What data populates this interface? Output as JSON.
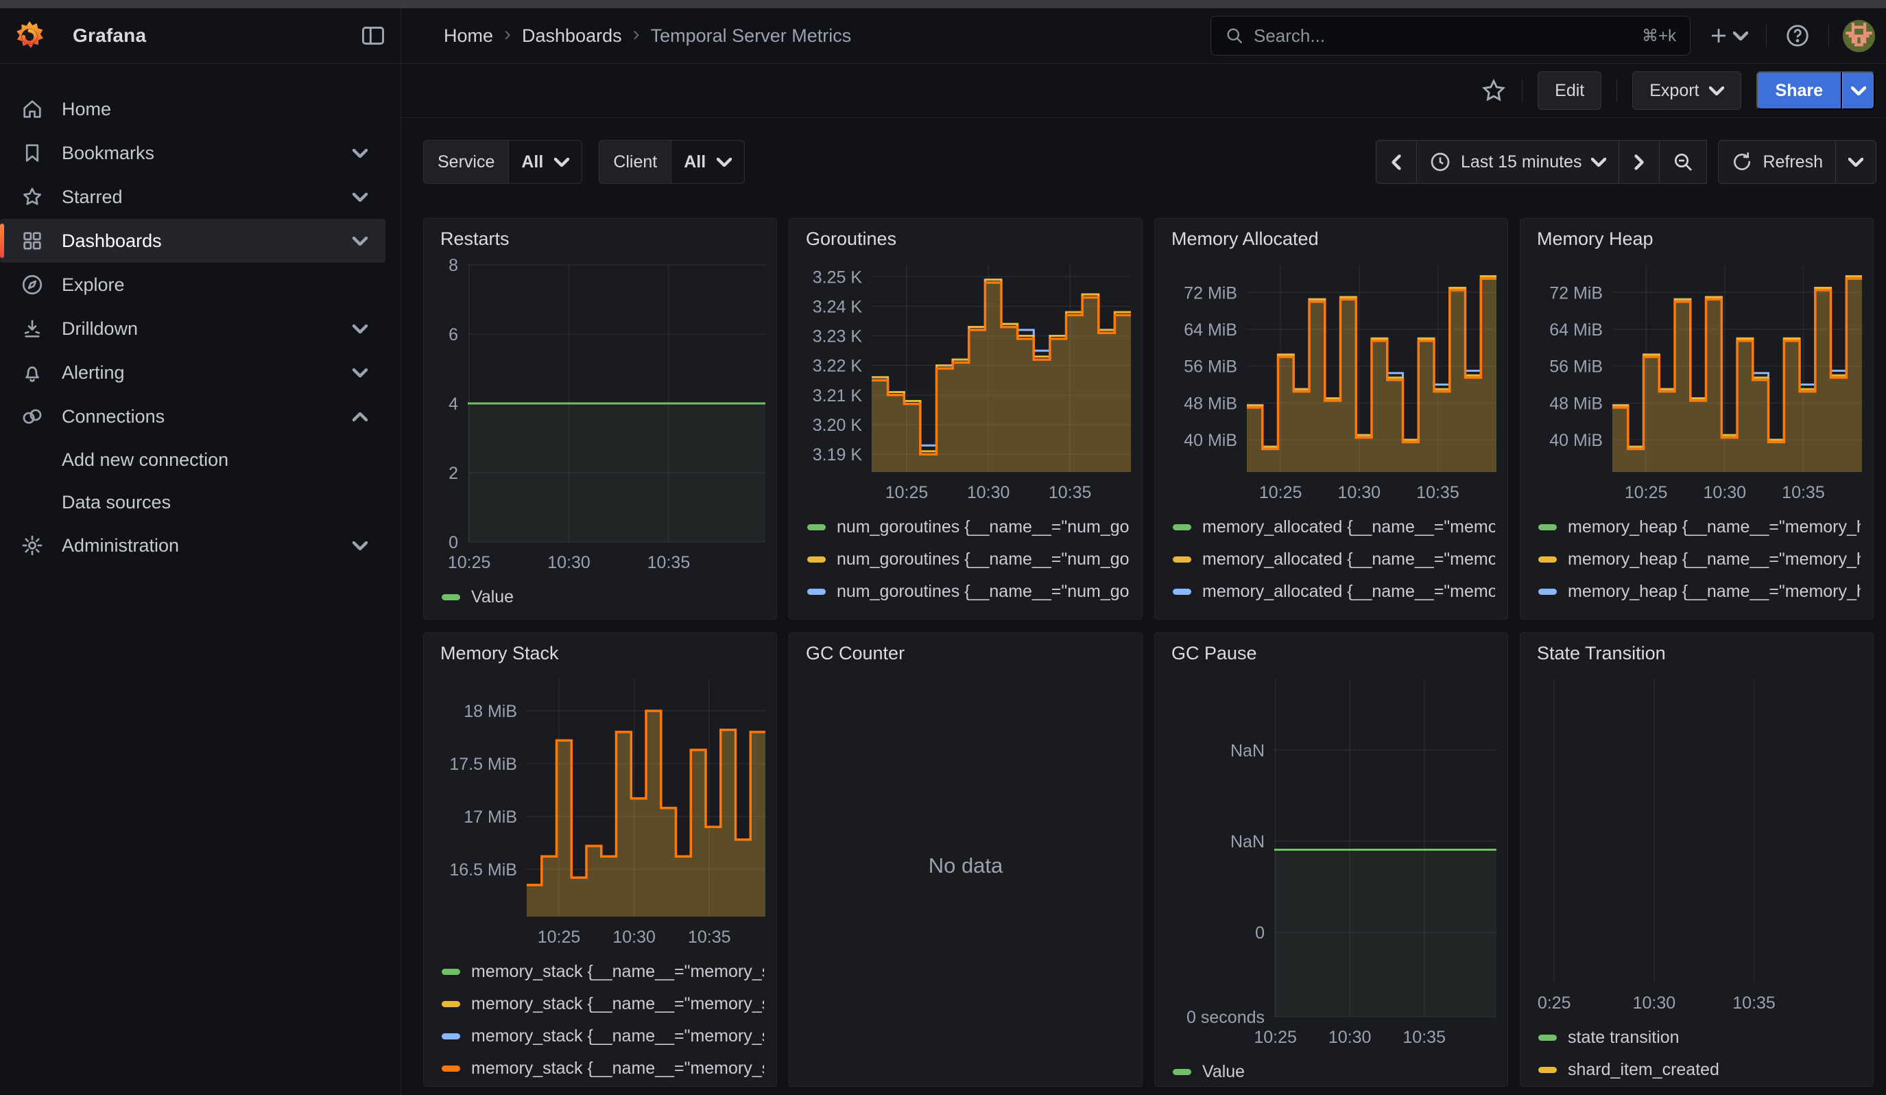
{
  "colors": {
    "page_bg": "#111217",
    "panel_bg": "#1A1B21",
    "panel_border": "#25262C",
    "accent_blue": "#3D71D9",
    "brand_orange": "#FF8833",
    "green": "#73BF69",
    "yellow": "#EAB839",
    "blue": "#8AB8FF",
    "orange": "#FF780A",
    "axis_text": "#9CA2AC",
    "area_fill": "rgba(234,184,57,0.32)",
    "green_fill": "rgba(115,191,105,0.07)"
  },
  "header": {
    "brand": "Grafana",
    "breadcrumb": [
      "Home",
      "Dashboards",
      "Temporal Server Metrics"
    ],
    "search_placeholder": "Search...",
    "search_shortcut": "⌘+k"
  },
  "toolbar": {
    "edit": "Edit",
    "export": "Export",
    "share": "Share"
  },
  "filters": [
    {
      "label": "Service",
      "value": "All"
    },
    {
      "label": "Client",
      "value": "All"
    }
  ],
  "timepicker": {
    "range": "Last 15 minutes",
    "refresh_label": "Refresh"
  },
  "sidebar": {
    "items": [
      {
        "label": "Home",
        "icon": "home"
      },
      {
        "label": "Bookmarks",
        "icon": "bookmark",
        "chevron": "down"
      },
      {
        "label": "Starred",
        "icon": "star",
        "chevron": "down"
      },
      {
        "label": "Dashboards",
        "icon": "grid",
        "chevron": "down",
        "active": true
      },
      {
        "label": "Explore",
        "icon": "compass"
      },
      {
        "label": "Drilldown",
        "icon": "drilldown",
        "chevron": "down"
      },
      {
        "label": "Alerting",
        "icon": "bell",
        "chevron": "down"
      },
      {
        "label": "Connections",
        "icon": "link",
        "chevron": "up"
      },
      {
        "label": "Add new connection",
        "indent": true
      },
      {
        "label": "Data sources",
        "indent": true
      },
      {
        "label": "Administration",
        "icon": "gear",
        "chevron": "down"
      }
    ]
  },
  "panels": [
    {
      "id": "restarts",
      "title": "Restarts",
      "legend": [
        {
          "color": "green",
          "label": "Value"
        }
      ]
    },
    {
      "id": "goroutines",
      "title": "Goroutines",
      "legend_clip": true,
      "legend": [
        {
          "color": "green",
          "label": "num_goroutines {__name__=\"num_go"
        },
        {
          "color": "yellow",
          "label": "num_goroutines {__name__=\"num_go"
        },
        {
          "color": "blue",
          "label": "num_goroutines {__name__=\"num_go"
        },
        {
          "color": "orange",
          "label": "num_goroutines {__name__=\"num_go"
        }
      ]
    },
    {
      "id": "memory_allocated",
      "title": "Memory Allocated",
      "legend_clip": true,
      "legend": [
        {
          "color": "green",
          "label": "memory_allocated {__name__=\"memo"
        },
        {
          "color": "yellow",
          "label": "memory_allocated {__name__=\"memo"
        },
        {
          "color": "blue",
          "label": "memory_allocated {__name__=\"memo"
        },
        {
          "color": "orange",
          "label": "memory_allocated {__name__=\"memo"
        }
      ]
    },
    {
      "id": "memory_heap",
      "title": "Memory Heap",
      "legend_clip": true,
      "legend": [
        {
          "color": "green",
          "label": "memory_heap {__name__=\"memory_h"
        },
        {
          "color": "yellow",
          "label": "memory_heap {__name__=\"memory_h"
        },
        {
          "color": "blue",
          "label": "memory_heap {__name__=\"memory_h"
        },
        {
          "color": "orange",
          "label": "memory_heap {__name__=\"memory_h"
        }
      ]
    },
    {
      "id": "memory_stack",
      "title": "Memory Stack",
      "legend": [
        {
          "color": "green",
          "label": "memory_stack {__name__=\"memory_s"
        },
        {
          "color": "yellow",
          "label": "memory_stack {__name__=\"memory_s"
        },
        {
          "color": "blue",
          "label": "memory_stack {__name__=\"memory_s"
        },
        {
          "color": "orange",
          "label": "memory_stack {__name__=\"memory_s"
        }
      ]
    },
    {
      "id": "gc_counter",
      "title": "GC Counter",
      "no_data": "No data",
      "legend": []
    },
    {
      "id": "gc_pause",
      "title": "GC Pause",
      "legend": [
        {
          "color": "green",
          "label": "Value"
        }
      ]
    },
    {
      "id": "state_transition",
      "title": "State Transition",
      "legend": [
        {
          "color": "green",
          "label": "state transition"
        },
        {
          "color": "yellow",
          "label": "shard_item_created"
        }
      ]
    }
  ],
  "chart_data": [
    {
      "panel": "restarts",
      "type": "line",
      "title": "Restarts",
      "ylim": [
        0,
        8
      ],
      "y_ticks": [
        {
          "v": 0,
          "label": "0"
        },
        {
          "v": 2,
          "label": "2"
        },
        {
          "v": 4,
          "label": "4"
        },
        {
          "v": 6,
          "label": "6"
        },
        {
          "v": 8,
          "label": "8"
        }
      ],
      "x_ticks": [
        {
          "f": 0.005,
          "label": "10:25"
        },
        {
          "f": 0.34,
          "label": "10:30"
        },
        {
          "f": 0.675,
          "label": "10:35"
        }
      ],
      "series": [
        {
          "name": "Value",
          "color": "green",
          "width": 3,
          "values": [
            4
          ],
          "fill": "rgba(115,191,105,0.07)"
        }
      ]
    },
    {
      "panel": "goroutines",
      "type": "area-step",
      "title": "Goroutines",
      "ylim": [
        3184,
        3254
      ],
      "y_ticks": [
        {
          "v": 3190,
          "label": "3.19 K"
        },
        {
          "v": 3200,
          "label": "3.20 K"
        },
        {
          "v": 3210,
          "label": "3.21 K"
        },
        {
          "v": 3220,
          "label": "3.22 K"
        },
        {
          "v": 3230,
          "label": "3.23 K"
        },
        {
          "v": 3240,
          "label": "3.24 K"
        },
        {
          "v": 3250,
          "label": "3.25 K"
        }
      ],
      "x_ticks": [
        {
          "f": 0.135,
          "label": "10:25"
        },
        {
          "f": 0.45,
          "label": "10:30"
        },
        {
          "f": 0.765,
          "label": "10:35"
        }
      ],
      "series": [
        {
          "name": "blue",
          "color": "blue",
          "width": 3,
          "values": [
            3216,
            3211,
            3208,
            3193,
            3220,
            3222,
            3233,
            3249,
            3234,
            3232,
            3225,
            3230,
            3238,
            3244,
            3232,
            3238
          ]
        },
        {
          "name": "yellow",
          "color": "yellow",
          "width": 3,
          "values": [
            3216,
            3211,
            3208,
            3191,
            3220,
            3222,
            3233,
            3249,
            3234,
            3230,
            3223,
            3230,
            3238,
            3244,
            3232,
            3238
          ]
        },
        {
          "name": "orange",
          "color": "orange",
          "width": 3.5,
          "values": [
            3215,
            3210,
            3207,
            3190,
            3219,
            3221,
            3232,
            3248,
            3233,
            3229,
            3222,
            3229,
            3237,
            3243,
            3231,
            3237
          ],
          "fill": "rgba(234,184,57,0.32)"
        }
      ]
    },
    {
      "panel": "memory_allocated",
      "type": "area-step",
      "title": "Memory Allocated",
      "ylim": [
        33,
        78
      ],
      "y_ticks": [
        {
          "v": 40,
          "label": "40 MiB"
        },
        {
          "v": 48,
          "label": "48 MiB"
        },
        {
          "v": 56,
          "label": "56 MiB"
        },
        {
          "v": 64,
          "label": "64 MiB"
        },
        {
          "v": 72,
          "label": "72 MiB"
        }
      ],
      "x_ticks": [
        {
          "f": 0.135,
          "label": "10:25"
        },
        {
          "f": 0.45,
          "label": "10:30"
        },
        {
          "f": 0.765,
          "label": "10:35"
        }
      ],
      "series": [
        {
          "name": "blue",
          "color": "blue",
          "width": 3,
          "values": [
            47.5,
            38.5,
            58.5,
            51,
            70.5,
            49,
            71,
            41,
            62,
            54.5,
            40,
            62,
            52,
            73,
            55,
            75.5
          ]
        },
        {
          "name": "yellow",
          "color": "yellow",
          "width": 3,
          "values": [
            47.5,
            38.5,
            58.5,
            51,
            70.5,
            49,
            71,
            41,
            62,
            53.5,
            40,
            62,
            51,
            73,
            54,
            75.5
          ]
        },
        {
          "name": "orange",
          "color": "orange",
          "width": 3.5,
          "values": [
            47,
            38,
            58,
            50.5,
            70,
            48.5,
            70.5,
            40.5,
            61.5,
            53,
            39.5,
            61.5,
            50.5,
            72.5,
            53.5,
            75
          ],
          "fill": "rgba(234,184,57,0.32)"
        }
      ]
    },
    {
      "panel": "memory_heap",
      "type": "area-step",
      "title": "Memory Heap",
      "ylim": [
        33,
        78
      ],
      "y_ticks": [
        {
          "v": 40,
          "label": "40 MiB"
        },
        {
          "v": 48,
          "label": "48 MiB"
        },
        {
          "v": 56,
          "label": "56 MiB"
        },
        {
          "v": 64,
          "label": "64 MiB"
        },
        {
          "v": 72,
          "label": "72 MiB"
        }
      ],
      "x_ticks": [
        {
          "f": 0.135,
          "label": "10:25"
        },
        {
          "f": 0.45,
          "label": "10:30"
        },
        {
          "f": 0.765,
          "label": "10:35"
        }
      ],
      "series": [
        {
          "name": "blue",
          "color": "blue",
          "width": 3,
          "values": [
            47.5,
            38.5,
            58.5,
            51,
            70.5,
            49,
            71,
            41,
            62,
            54.5,
            40,
            62,
            52,
            73,
            55,
            75.5
          ]
        },
        {
          "name": "yellow",
          "color": "yellow",
          "width": 3,
          "values": [
            47.5,
            38.5,
            58.5,
            51,
            70.5,
            49,
            71,
            41,
            62,
            53.5,
            40,
            62,
            51,
            73,
            54,
            75.5
          ]
        },
        {
          "name": "orange",
          "color": "orange",
          "width": 3.5,
          "values": [
            47,
            38,
            58,
            50.5,
            70,
            48.5,
            70.5,
            40.5,
            61.5,
            53,
            39.5,
            61.5,
            50.5,
            72.5,
            53.5,
            75
          ],
          "fill": "rgba(234,184,57,0.32)"
        }
      ]
    },
    {
      "panel": "memory_stack",
      "type": "area-step",
      "title": "Memory Stack",
      "ylim": [
        16.05,
        18.3
      ],
      "y_ticks": [
        {
          "v": 16.5,
          "label": "16.5 MiB"
        },
        {
          "v": 17,
          "label": "17 MiB"
        },
        {
          "v": 17.5,
          "label": "17.5 MiB"
        },
        {
          "v": 18,
          "label": "18 MiB"
        }
      ],
      "x_ticks": [
        {
          "f": 0.135,
          "label": "10:25"
        },
        {
          "f": 0.45,
          "label": "10:30"
        },
        {
          "f": 0.765,
          "label": "10:35"
        }
      ],
      "series": [
        {
          "name": "orange",
          "color": "orange",
          "width": 3.5,
          "values": [
            16.35,
            16.62,
            17.72,
            16.42,
            16.72,
            16.62,
            17.8,
            17.17,
            18.0,
            17.08,
            16.62,
            17.63,
            16.9,
            17.82,
            16.78,
            17.8
          ],
          "fill": "rgba(234,184,57,0.32)"
        }
      ]
    },
    {
      "panel": "gc_pause",
      "type": "line",
      "title": "GC Pause",
      "ylim": [
        0,
        4
      ],
      "y_ticks": [
        {
          "v": 0,
          "label": "0 seconds"
        },
        {
          "v": 1,
          "label": "0"
        },
        {
          "v": 2.08,
          "label": "NaN"
        },
        {
          "v": 3.16,
          "label": "NaN"
        }
      ],
      "x_ticks": [
        {
          "f": 0.005,
          "label": "10:25"
        },
        {
          "f": 0.34,
          "label": "10:30"
        },
        {
          "f": 0.675,
          "label": "10:35"
        }
      ],
      "series": [
        {
          "name": "Value",
          "color": "green",
          "width": 3,
          "values": [
            1.98
          ],
          "fill": "rgba(115,191,105,0.07)"
        }
      ]
    },
    {
      "panel": "state_transition",
      "type": "empty",
      "title": "State Transition",
      "y_ticks": [],
      "x_ticks": [
        {
          "f": 0.045,
          "label": "0:25"
        },
        {
          "f": 0.355,
          "label": "10:30"
        },
        {
          "f": 0.665,
          "label": "10:35"
        }
      ],
      "series": []
    }
  ]
}
